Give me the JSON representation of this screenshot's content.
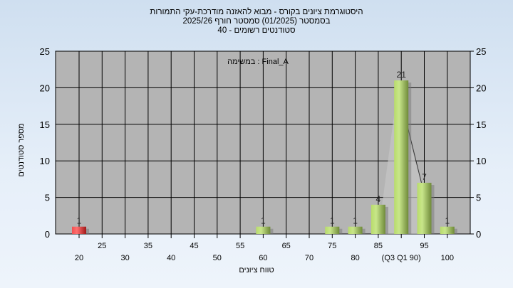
{
  "chart_data": {
    "type": "bar",
    "title_lines": [
      "היסטוגרמת ציונים בקורס - מבוא להאזנה מודרכת-עקי התמורות",
      "בסמסטר  (01/2025)  סמסטר חורף 2025/26",
      "סטודנטים רשומים - 40"
    ],
    "subtitle": "במשימה : Final_A",
    "xlabel": "טווח ציונים",
    "ylabel": "מספר סטודנטים",
    "ylim": [
      0,
      25
    ],
    "yticks": [
      0,
      5,
      10,
      15,
      20,
      25
    ],
    "categories": [
      20,
      25,
      30,
      35,
      40,
      45,
      50,
      55,
      60,
      65,
      70,
      75,
      80,
      85,
      90,
      95,
      100
    ],
    "tick_labels": {
      "90": "(Q3 Q1 90)"
    },
    "values": [
      1,
      0,
      0,
      0,
      0,
      0,
      0,
      0,
      1,
      0,
      0,
      1,
      1,
      4,
      21,
      7,
      1
    ],
    "grid": true,
    "colors": {
      "bar": "#a4c95a",
      "highlight_bar": "#e03030",
      "plot_bg": "#b4b4b4"
    },
    "highlight_category": 20
  }
}
